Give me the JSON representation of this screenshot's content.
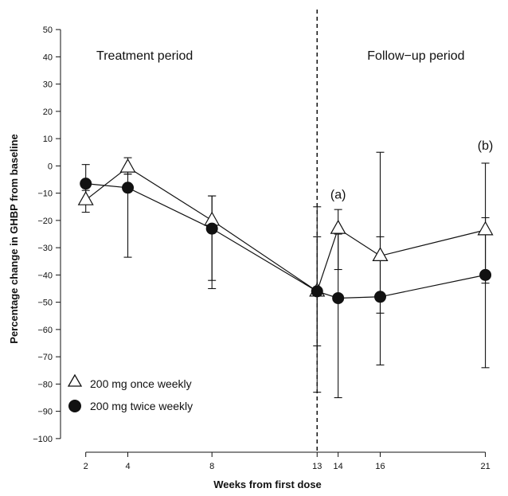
{
  "chart_data": {
    "type": "line",
    "xlabel": "Weeks from first dose",
    "ylabel": "Percentage change in GHBP from baseline",
    "xlim": [
      0.8,
      22
    ],
    "ylim": [
      -105,
      55
    ],
    "x_ticks": [
      2,
      4,
      8,
      13,
      14,
      16,
      21
    ],
    "x_tick_labels": [
      "2",
      "4",
      "8",
      "13",
      "14",
      "16",
      "21"
    ],
    "y_ticks": [
      50,
      40,
      30,
      20,
      10,
      0,
      -10,
      -20,
      -30,
      -40,
      -50,
      -60,
      -70,
      -80,
      -90,
      -100
    ],
    "y_tick_labels": [
      "50",
      "40",
      "30",
      "20",
      "10",
      "0",
      "−10",
      "−20",
      "−30",
      "−40",
      "−50",
      "−60",
      "−70",
      "−80",
      "−90",
      "−100"
    ],
    "grid": false,
    "divider_x": 13,
    "period_labels": [
      {
        "key": "treatment",
        "text": "Treatment period",
        "x": 4.8,
        "y": 39
      },
      {
        "key": "followup",
        "text": "Follow−up period",
        "x": 17.7,
        "y": 39
      }
    ],
    "annotations": [
      {
        "key": "a",
        "text": "(a)",
        "x": 14,
        "y": -12
      },
      {
        "key": "b",
        "text": "(b)",
        "x": 21,
        "y": 6
      }
    ],
    "series": [
      {
        "name": "200 mg once weekly",
        "marker": "triangle-open",
        "x": [
          2,
          4,
          8,
          13,
          14,
          16,
          21
        ],
        "y": [
          -12.5,
          -0.5,
          -20,
          -46,
          -23,
          -33,
          -23.5
        ],
        "err_low": [
          -17,
          -3,
          -42,
          -83,
          -38,
          -73,
          -43
        ],
        "err_high": [
          -9,
          3,
          -11,
          -15,
          -16,
          5,
          1
        ]
      },
      {
        "name": "200 mg twice weekly",
        "marker": "circle-filled",
        "x": [
          2,
          4,
          8,
          13,
          14,
          16,
          21
        ],
        "y": [
          -6.5,
          -8,
          -23,
          -46,
          -48.5,
          -48,
          -40
        ],
        "err_low": [
          -13,
          -33.5,
          -45,
          -66,
          -85,
          -54,
          -74
        ],
        "err_high": [
          0.5,
          -3,
          -11,
          -26,
          -25,
          -26,
          -19
        ]
      }
    ],
    "legend_position": "bottom-left"
  }
}
